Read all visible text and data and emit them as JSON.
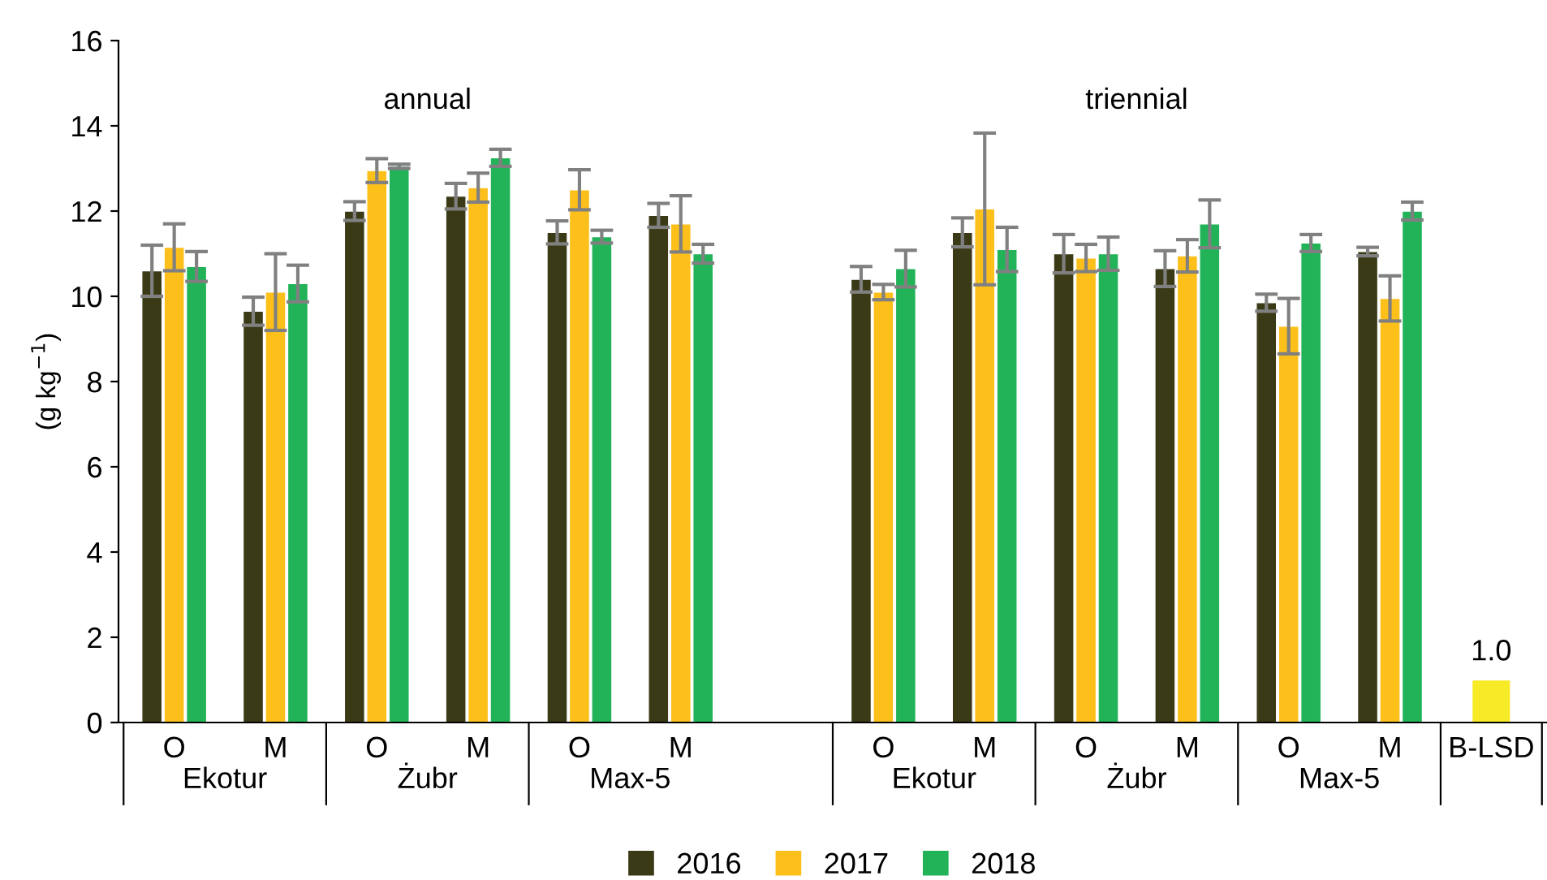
{
  "chart_data": {
    "type": "bar",
    "ylabel": "(g kg$^{−1}$)",
    "categories": [
      "O",
      "M",
      "O",
      "M",
      "O",
      "M",
      null,
      "O",
      "M",
      "O",
      "M",
      "O",
      "M",
      "B-LSD"
    ],
    "series": [
      {
        "name": "2016",
        "color": "#3b3a17",
        "values": [
          10.6,
          9.65,
          12.0,
          12.35,
          11.5,
          11.9,
          null,
          10.4,
          11.5,
          11.0,
          10.65,
          9.85,
          11.05,
          null
        ],
        "errors": [
          0.6,
          0.33,
          0.22,
          0.3,
          0.27,
          0.28,
          null,
          0.3,
          0.34,
          0.45,
          0.42,
          0.2,
          0.1,
          null
        ]
      },
      {
        "name": "2017",
        "color": "#fdbf1a",
        "values": [
          11.15,
          10.1,
          12.95,
          12.55,
          12.5,
          11.7,
          null,
          10.1,
          12.05,
          10.9,
          10.95,
          9.3,
          9.95,
          null
        ],
        "errors": [
          0.55,
          0.9,
          0.28,
          0.34,
          0.47,
          0.66,
          null,
          0.18,
          1.78,
          0.32,
          0.38,
          0.65,
          0.53,
          null
        ]
      },
      {
        "name": "2018",
        "color": "#22b359",
        "values": [
          10.7,
          10.3,
          13.05,
          13.25,
          11.4,
          11.0,
          null,
          10.65,
          11.1,
          11.0,
          11.7,
          11.25,
          12.0,
          null
        ],
        "errors": [
          0.35,
          0.43,
          0.05,
          0.2,
          0.15,
          0.22,
          null,
          0.43,
          0.52,
          0.39,
          0.56,
          0.2,
          0.21,
          null
        ]
      },
      {
        "color": "#f7ea26",
        "values": [
          null,
          null,
          null,
          null,
          null,
          null,
          null,
          null,
          null,
          null,
          null,
          null,
          null,
          1.0
        ],
        "value_labels": [
          null,
          null,
          null,
          null,
          null,
          null,
          null,
          null,
          null,
          null,
          null,
          null,
          null,
          "1.0"
        ]
      }
    ],
    "ylim": [
      0,
      16
    ],
    "yticks": [
      0,
      2,
      4,
      6,
      8,
      10,
      12,
      14,
      16
    ],
    "grid": false,
    "legend": "bottom",
    "annotations": [
      "annual",
      "triennial",
      "Ekotur",
      "Żubr",
      "Max-5",
      "Ekotur",
      "Żubr",
      "Max-5"
    ]
  }
}
